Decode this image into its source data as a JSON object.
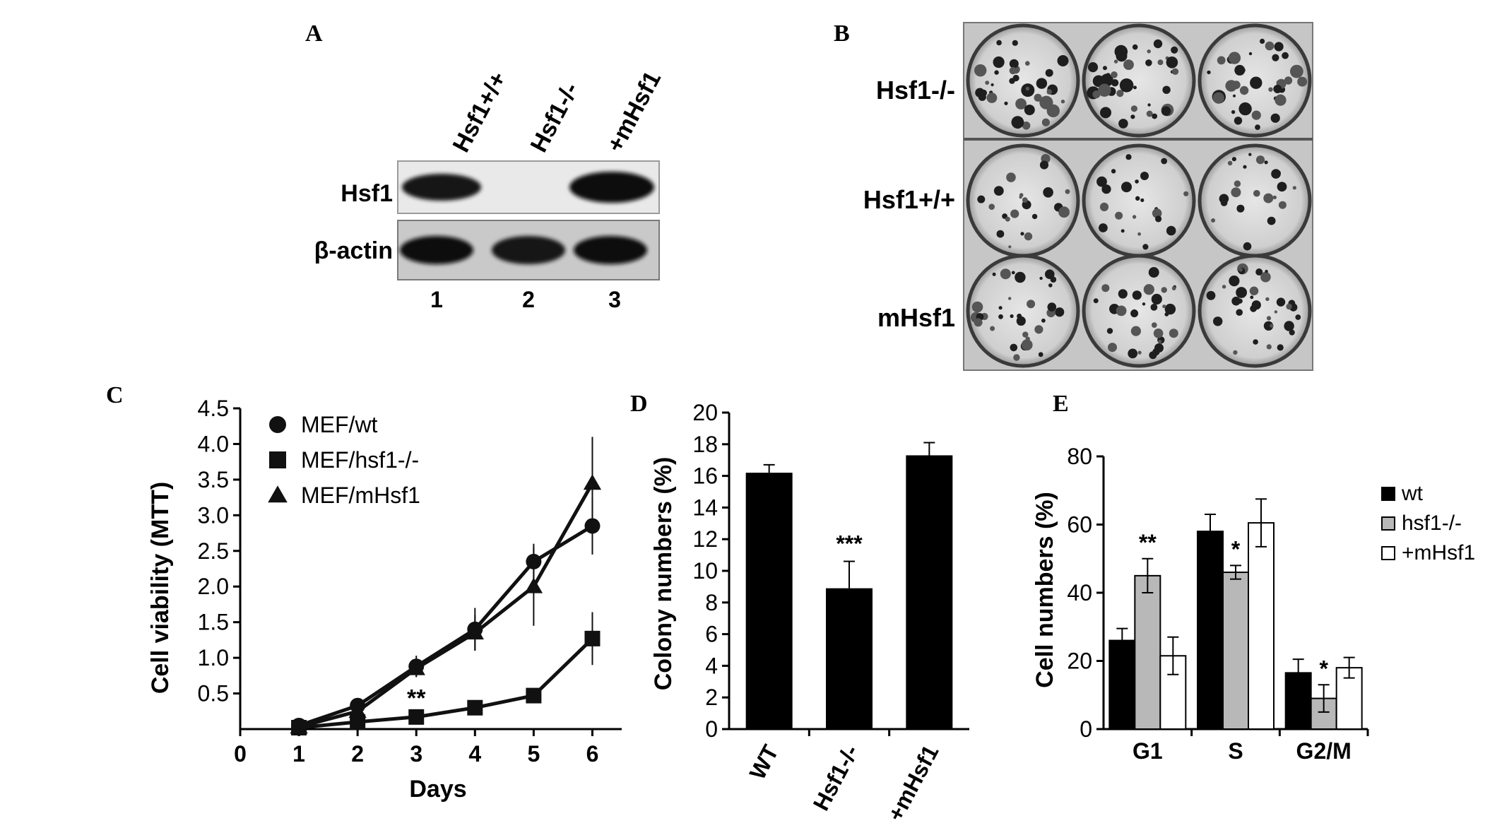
{
  "panels": {
    "a": {
      "letter": "A",
      "lanes": [
        "Hsf1+/+",
        "Hsf1-/-",
        "+mHsf1"
      ],
      "rows": [
        "Hsf1",
        "β-actin"
      ],
      "lane_numbers": [
        "1",
        "2",
        "3"
      ]
    },
    "b": {
      "letter": "B",
      "rows": [
        "Hsf1-/-",
        "Hsf1+/+",
        "mHsf1"
      ]
    },
    "c": {
      "letter": "C"
    },
    "d": {
      "letter": "D"
    },
    "e": {
      "letter": "E"
    }
  },
  "chart_data": [
    {
      "type": "line",
      "panel": "C",
      "xlabel": "Days",
      "ylabel": "Cell viability (MTT)",
      "x_ticks": [
        "0",
        "1",
        "2",
        "3",
        "4",
        "5",
        "6"
      ],
      "y_ticks": [
        "0.5",
        "1.0",
        "1.5",
        "2.0",
        "2.5",
        "3.0",
        "3.5",
        "4.0",
        "4.5"
      ],
      "xlim": [
        0,
        6.5
      ],
      "ylim": [
        0,
        4.5
      ],
      "x": [
        1,
        2,
        3,
        4,
        5,
        6
      ],
      "series": [
        {
          "name": "MEF/wt",
          "marker": "circle",
          "values": [
            0.05,
            0.33,
            0.88,
            1.4,
            2.35,
            2.85
          ],
          "errors": [
            0.02,
            0.05,
            0.15,
            0.3,
            0.25,
            0.4
          ]
        },
        {
          "name": "MEF/hsf1-/-",
          "marker": "square",
          "values": [
            0.02,
            0.1,
            0.17,
            0.3,
            0.47,
            1.27
          ],
          "errors": [
            0.02,
            0.03,
            0.05,
            0.05,
            0.05,
            0.37
          ]
        },
        {
          "name": "MEF/mHsf1",
          "marker": "triangle",
          "values": [
            0.03,
            0.25,
            0.85,
            1.35,
            2.0,
            3.45
          ],
          "errors": [
            0.02,
            0.05,
            0.12,
            0.25,
            0.55,
            0.65
          ]
        }
      ],
      "annotations": [
        {
          "x": 3,
          "y": 0.32,
          "text": "**"
        }
      ]
    },
    {
      "type": "bar",
      "panel": "D",
      "ylabel": "Colony numbers (%)",
      "categories": [
        "WT",
        "Hsf1-/-",
        "+mHsf1"
      ],
      "values": [
        16.2,
        8.9,
        17.3
      ],
      "errors": [
        0.5,
        1.7,
        0.8
      ],
      "ylim": [
        0,
        20
      ],
      "y_ticks": [
        "0",
        "2",
        "4",
        "6",
        "8",
        "10",
        "12",
        "14",
        "16",
        "18",
        "20"
      ],
      "annotations": [
        {
          "category": "Hsf1-/-",
          "text": "***"
        }
      ]
    },
    {
      "type": "bar",
      "panel": "E",
      "ylabel": "Cell numbers (%)",
      "categories": [
        "G1",
        "S",
        "G2/M"
      ],
      "ylim": [
        0,
        80
      ],
      "y_ticks": [
        "0",
        "20",
        "40",
        "60",
        "80"
      ],
      "series": [
        {
          "name": "wt",
          "color": "#000000",
          "values": [
            26,
            58,
            16.5
          ],
          "errors": [
            3.5,
            5,
            4
          ]
        },
        {
          "name": "hsf1-/-",
          "color": "#b8b8b8",
          "values": [
            45,
            46,
            9
          ],
          "errors": [
            5,
            2,
            4
          ]
        },
        {
          "name": "+mHsf1",
          "color": "#ffffff",
          "values": [
            21.5,
            60.5,
            18
          ],
          "errors": [
            5.5,
            7,
            3
          ]
        }
      ],
      "annotations": [
        {
          "category": "G1",
          "series": "hsf1-/-",
          "text": "**"
        },
        {
          "category": "S",
          "series": "hsf1-/-",
          "text": "*"
        },
        {
          "category": "G2/M",
          "series": "hsf1-/-",
          "text": "*"
        }
      ]
    }
  ]
}
